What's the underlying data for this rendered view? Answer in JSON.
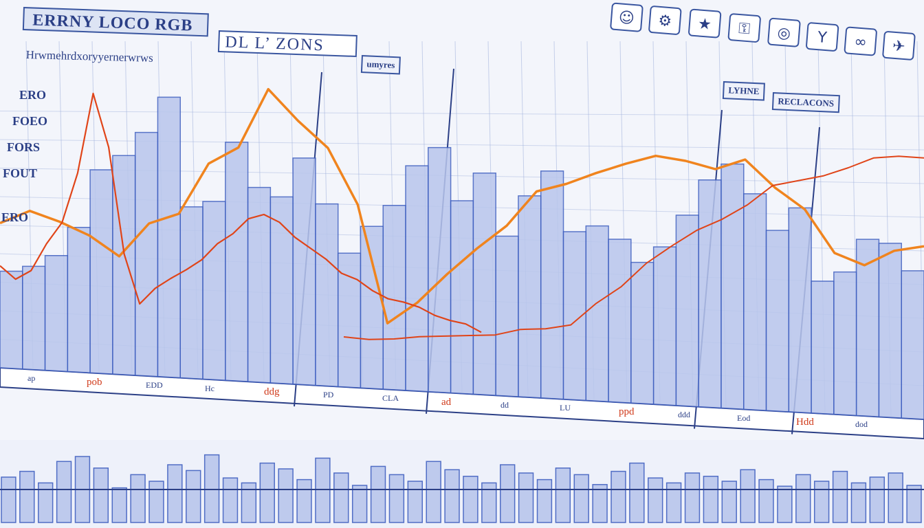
{
  "header": {
    "title": "ERRNY LOCO RGB",
    "subtitle_box": "DL L’ ZONS",
    "tag": "umyres",
    "subtitle": "Hrwmehrdxoryyernerwrws"
  },
  "right_tags": [
    "LYHNE",
    "RECLACONS"
  ],
  "toolbar": {
    "buttons": [
      {
        "icon": "person-icon",
        "glyph": "☺"
      },
      {
        "icon": "gear-icon",
        "glyph": "⚙"
      },
      {
        "icon": "chart-icon",
        "glyph": "★"
      },
      {
        "icon": "key-icon",
        "glyph": "⚿"
      },
      {
        "icon": "target-icon",
        "glyph": "◎"
      },
      {
        "icon": "cup-icon",
        "glyph": "Y"
      },
      {
        "icon": "link-icon",
        "glyph": "∞"
      },
      {
        "icon": "car-icon",
        "glyph": "✈"
      }
    ]
  },
  "colors": {
    "bars": "#b9c6ec",
    "bar_edge": "#3f5fc0",
    "orange_line": "#f0841e",
    "red_line": "#e04418",
    "grid": "#9fb0dc",
    "axis": "#2b3f86"
  },
  "chart_data": [
    {
      "type": "bar",
      "title": "ERRNY LOCO RGB",
      "y_tick_labels": [
        "ERO",
        "FOEO",
        "FORS",
        "FOUT",
        "ERO"
      ],
      "x_tick_labels": [
        "ap",
        "pob",
        "EDD",
        "Hc",
        "ddg",
        "PD",
        "CLA",
        "ad",
        "dd",
        "LU",
        "ppd",
        "ddd",
        "Eod",
        "Hdd",
        "dod"
      ],
      "ylim": [
        0,
        100
      ],
      "bars": [
        34,
        36,
        40,
        50,
        70,
        75,
        83,
        95,
        58,
        60,
        80,
        65,
        62,
        75,
        60,
        44,
        53,
        60,
        73,
        79,
        62,
        71,
        51,
        64,
        72,
        53,
        55,
        51,
        44,
        49,
        59,
        70,
        75,
        66,
        55,
        62,
        40,
        43,
        53,
        52,
        44
      ],
      "series": [
        {
          "name": "",
          "values": [
            50,
            55,
            52,
            48,
            40,
            52,
            56,
            72,
            78,
            98,
            88,
            78,
            60,
            22,
            28,
            38,
            47,
            55,
            65,
            68,
            72,
            74,
            77,
            76,
            74,
            76,
            68,
            62,
            48,
            45,
            50,
            52
          ]
        },
        {
          "name": "",
          "values": [
            36,
            32,
            34,
            44,
            52,
            68,
            96,
            78,
            42,
            24,
            30,
            34,
            36,
            40,
            46,
            50,
            54,
            56,
            54,
            48,
            45,
            42,
            38,
            35,
            32,
            30,
            28,
            27,
            25,
            24,
            22,
            20
          ]
        },
        {
          "name": "",
          "values": [
            16,
            16,
            17,
            17,
            18,
            19,
            20,
            21,
            22,
            24,
            30,
            36,
            44,
            50,
            54,
            58,
            63,
            68,
            70,
            72,
            75,
            77,
            78,
            78
          ]
        }
      ]
    },
    {
      "type": "bar",
      "bars": [
        55,
        62,
        48,
        74,
        80,
        66,
        42,
        58,
        50,
        70,
        63,
        82,
        54,
        48,
        72,
        65,
        52,
        78,
        60,
        45,
        68,
        58,
        50,
        74,
        64,
        56,
        48,
        70,
        60,
        52,
        66,
        58,
        46,
        62,
        72,
        54,
        48,
        60,
        56,
        50,
        64,
        52,
        44,
        58,
        50,
        62,
        48,
        55,
        60,
        45
      ]
    }
  ]
}
